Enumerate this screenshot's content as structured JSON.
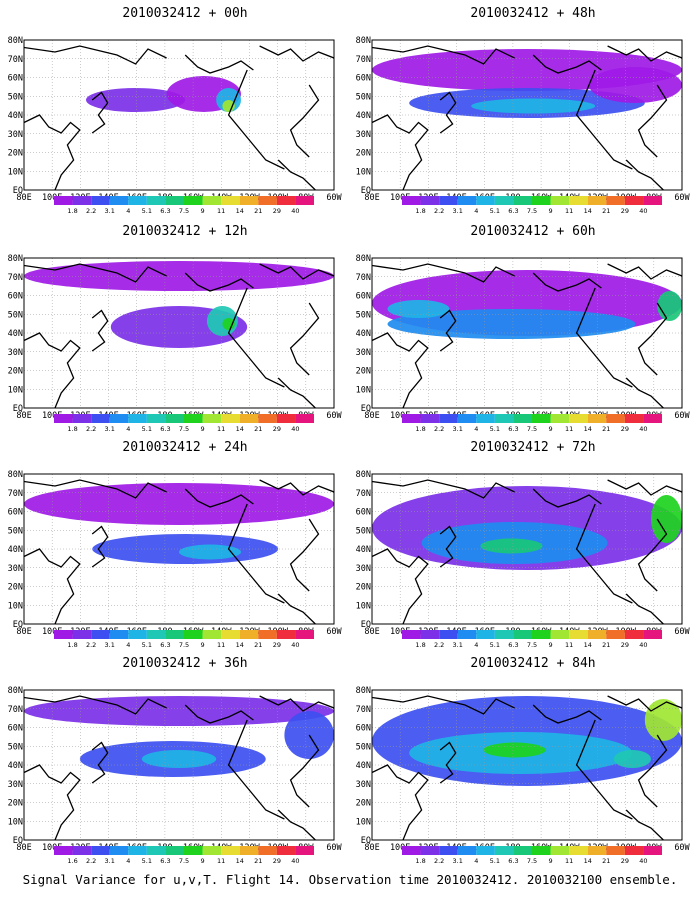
{
  "panels": [
    {
      "title": "2010032412 + 00h",
      "lead": "00h"
    },
    {
      "title": "2010032412 + 48h",
      "lead": "48h"
    },
    {
      "title": "2010032412 + 12h",
      "lead": "12h"
    },
    {
      "title": "2010032412 + 60h",
      "lead": "60h"
    },
    {
      "title": "2010032412 + 24h",
      "lead": "24h"
    },
    {
      "title": "2010032412 + 72h",
      "lead": "72h"
    },
    {
      "title": "2010032412 + 36h",
      "lead": "36h"
    },
    {
      "title": "2010032412 + 84h",
      "lead": "84h"
    }
  ],
  "axes": {
    "lon_labels": [
      "80E",
      "100E",
      "120E",
      "140E",
      "160E",
      "180",
      "160W",
      "140W",
      "120W",
      "100W",
      "80W",
      "60W"
    ],
    "lat_labels": [
      "80N",
      "70N",
      "60N",
      "50N",
      "40N",
      "30N",
      "20N",
      "10N",
      "EQ"
    ]
  },
  "colorbar": {
    "labels": [
      "1.8",
      "2.2",
      "3.1",
      "4",
      "5.1",
      "6.3",
      "7.5",
      "9",
      "11",
      "14",
      "21",
      "29",
      "40"
    ],
    "labels_last_panel_left": [
      "1.6",
      "2.2",
      "3.1",
      "4",
      "5.1",
      "6.3",
      "7.5",
      "9",
      "11",
      "14",
      "21",
      "29",
      "40"
    ],
    "colors": [
      "#a01ae6",
      "#7c30e8",
      "#3d4ff0",
      "#1e8cf0",
      "#1fb4e6",
      "#1fc8b4",
      "#18c878",
      "#1ed21e",
      "#a0e632",
      "#e6dc32",
      "#f0af28",
      "#f06e28",
      "#f02d3c",
      "#e6147d"
    ]
  },
  "footer": "Signal Variance for u,v,T. Flight 14. Observation time 2010032412. 2010032100 ensemble."
}
